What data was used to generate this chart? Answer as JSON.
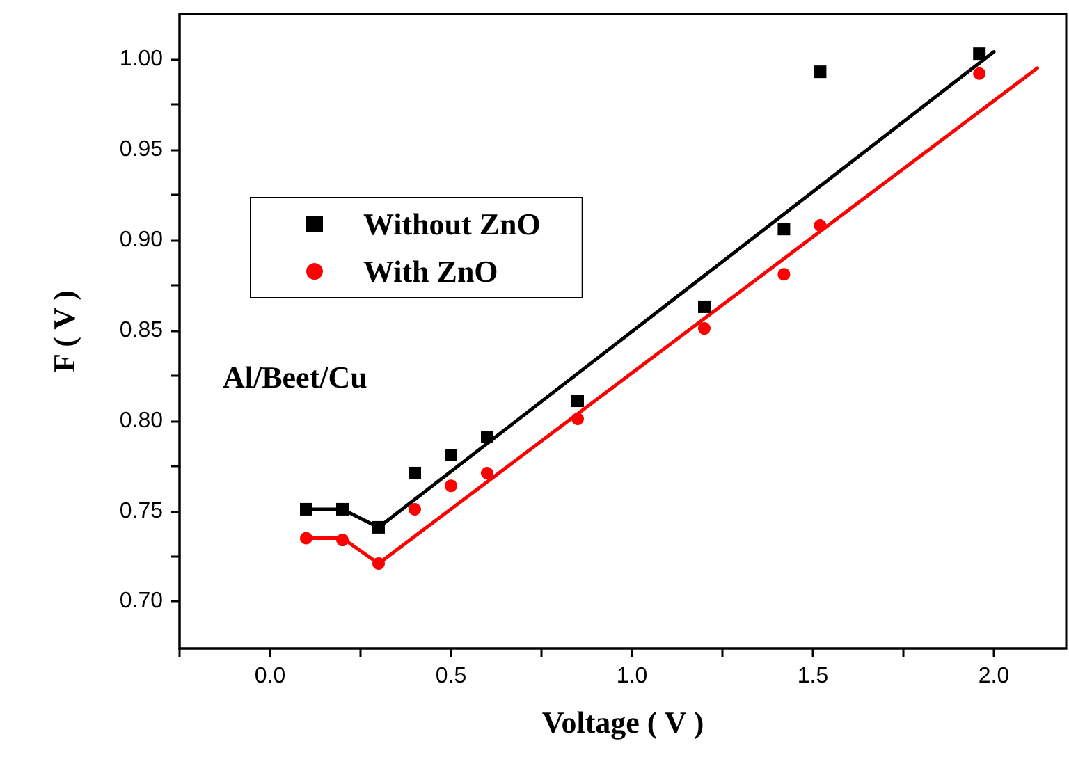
{
  "chart_data": {
    "type": "scatter",
    "xlabel": "Voltage ( V )",
    "ylabel": "F ( V )",
    "xlim": [
      -0.25,
      2.2
    ],
    "ylim": [
      0.674,
      1.025
    ],
    "xticks": [
      {
        "value": -0.25,
        "label": null
      },
      {
        "value": 0,
        "label": "0.0"
      },
      {
        "value": 0.25,
        "label": null
      },
      {
        "value": 0.5,
        "label": "0.5"
      },
      {
        "value": 0.75,
        "label": null
      },
      {
        "value": 1,
        "label": "1.0"
      },
      {
        "value": 1.25,
        "label": null
      },
      {
        "value": 1.5,
        "label": "1.5"
      },
      {
        "value": 1.75,
        "label": null
      },
      {
        "value": 2,
        "label": "2.0"
      }
    ],
    "yticks": [
      {
        "value": 0.7,
        "label": "0.70"
      },
      {
        "value": 0.725,
        "label": null
      },
      {
        "value": 0.75,
        "label": "0.75"
      },
      {
        "value": 0.775,
        "label": null
      },
      {
        "value": 0.8,
        "label": "0.80"
      },
      {
        "value": 0.825,
        "label": null
      },
      {
        "value": 0.85,
        "label": "0.85"
      },
      {
        "value": 0.875,
        "label": null
      },
      {
        "value": 0.9,
        "label": "0.90"
      },
      {
        "value": 0.925,
        "label": null
      },
      {
        "value": 0.95,
        "label": "0.95"
      },
      {
        "value": 0.975,
        "label": null
      },
      {
        "value": 1,
        "label": "1.00"
      }
    ],
    "grid": false,
    "legend": "top left",
    "annotations": [
      "Al/Beet/Cu"
    ],
    "series": [
      {
        "name": "Without ZnO",
        "color": "#000000",
        "marker": "square",
        "x": [
          0.1,
          0.2,
          0.3,
          0.4,
          0.5,
          0.6,
          0.85,
          1.2,
          1.42,
          1.52,
          1.96
        ],
        "values": [
          0.751,
          0.751,
          0.741,
          0.771,
          0.781,
          0.791,
          0.811,
          0.863,
          0.906,
          0.993,
          1.003
        ]
      },
      {
        "name": "With ZnO",
        "color": "#ff0000",
        "marker": "circle",
        "x": [
          0.1,
          0.2,
          0.3,
          0.4,
          0.5,
          0.6,
          0.85,
          1.2,
          1.42,
          1.52,
          1.96
        ],
        "values": [
          0.735,
          0.734,
          0.721,
          0.751,
          0.764,
          0.771,
          0.801,
          0.851,
          0.881,
          0.908,
          0.992
        ]
      },
      {
        "type": "line",
        "color": "#000000",
        "marker": "none",
        "line_style": "solid",
        "x": [
          0.1,
          0.2,
          0.3,
          2.0
        ],
        "values": [
          0.751,
          0.751,
          0.741,
          1.004
        ]
      },
      {
        "type": "line",
        "color": "#ff0000",
        "marker": "none",
        "line_style": "solid",
        "x": [
          0.1,
          0.2,
          0.3,
          2.12
        ],
        "values": [
          0.735,
          0.735,
          0.721,
          0.995
        ]
      }
    ]
  }
}
